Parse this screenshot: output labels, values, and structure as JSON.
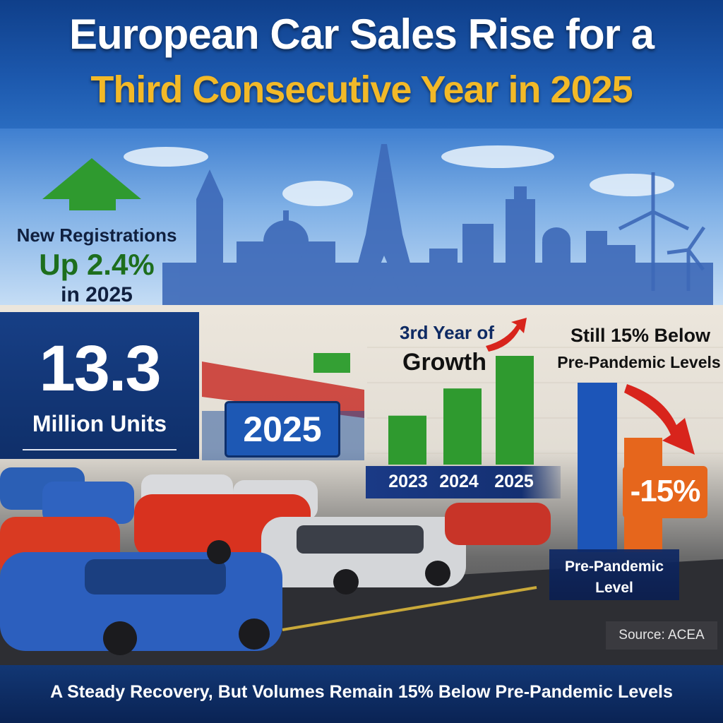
{
  "header": {
    "title_line1": "European Car Sales Rise for a",
    "title_line2": "Third Consecutive Year in 2025"
  },
  "registrations": {
    "line1": "New Registrations",
    "line2": "Up 2.4%",
    "line3": "in 2025"
  },
  "units": {
    "value": "13.3",
    "label": "Million Units"
  },
  "year_badge": "2025",
  "growth_chart": {
    "label_line1": "3rd Year of",
    "label_line2": "Growth",
    "categories": [
      "2023",
      "2024",
      "2025"
    ],
    "relative_values": [
      0.45,
      0.7,
      1.0
    ]
  },
  "below_chart": {
    "label_line1": "Still 15% Below",
    "label_line2": "Pre-Pandemic Levels",
    "badge": "-15%",
    "bar_label": "Pre-Pandemic Level"
  },
  "source": "Source: ACEA",
  "footer": "A Steady Recovery, But Volumes Remain 15% Below Pre-Pandemic Levels",
  "colors": {
    "title_accent": "#f2b928",
    "growth_green": "#2f9a2f",
    "bar_blue": "#1c55b8",
    "bar_orange": "#e6661c",
    "arrow_red": "#d8241c"
  },
  "icons": [
    "up-arrow-icon",
    "trend-arrow-icon",
    "down-arrow-icon",
    "wind-turbine-icon"
  ]
}
